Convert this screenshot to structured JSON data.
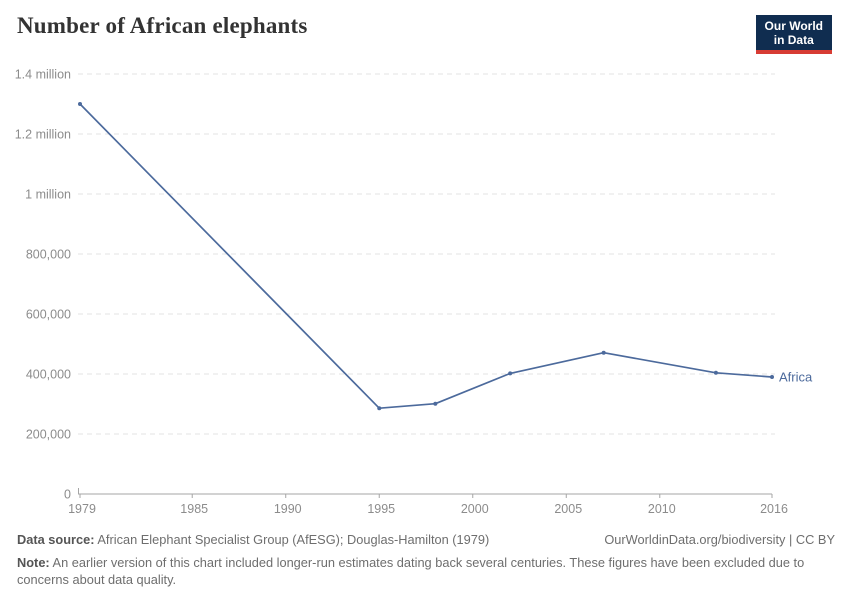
{
  "header": {
    "title": "Number of African elephants",
    "logo": {
      "line1": "Our World",
      "line2": "in Data"
    }
  },
  "chart_data": {
    "type": "line",
    "title": "Number of African elephants",
    "series": [
      {
        "name": "Africa",
        "color": "#4C6A9C",
        "points": [
          {
            "year": 1979,
            "value": 1300000
          },
          {
            "year": 1995,
            "value": 286000
          },
          {
            "year": 1998,
            "value": 301000
          },
          {
            "year": 2002,
            "value": 402000
          },
          {
            "year": 2007,
            "value": 471000
          },
          {
            "year": 2013,
            "value": 404000
          },
          {
            "year": 2016,
            "value": 390000
          }
        ]
      }
    ],
    "end_label": "Africa",
    "xlim": [
      1979,
      2016
    ],
    "ylim": [
      0,
      1400000
    ],
    "x_ticks": [
      {
        "value": 1979,
        "label": "1979"
      },
      {
        "value": 1985,
        "label": "1985"
      },
      {
        "value": 1990,
        "label": "1990"
      },
      {
        "value": 1995,
        "label": "1995"
      },
      {
        "value": 2000,
        "label": "2000"
      },
      {
        "value": 2005,
        "label": "2005"
      },
      {
        "value": 2010,
        "label": "2010"
      },
      {
        "value": 2016,
        "label": "2016"
      }
    ],
    "y_ticks": [
      {
        "value": 0,
        "label": "0"
      },
      {
        "value": 200000,
        "label": "200,000"
      },
      {
        "value": 400000,
        "label": "400,000"
      },
      {
        "value": 600000,
        "label": "600,000"
      },
      {
        "value": 800000,
        "label": "800,000"
      },
      {
        "value": 1000000,
        "label": "1 million"
      },
      {
        "value": 1200000,
        "label": "1.2 million"
      },
      {
        "value": 1400000,
        "label": "1.4 million"
      }
    ],
    "grid": "horizontal-dashed",
    "legend_position": "end-of-line-label"
  },
  "footer": {
    "datasource_label": "Data source:",
    "datasource_text": " African Elephant Specialist Group (AfESG); Douglas-Hamilton (1979)",
    "attribution": "OurWorldinData.org/biodiversity | CC BY",
    "note_label": "Note:",
    "note_text": " An earlier version of this chart included longer-run estimates dating back several centuries. These figures have been excluded due to concerns about data quality."
  },
  "colors": {
    "line": "#4C6A9C",
    "end_label": "#4C6A9C",
    "gridline": "#e3e3e3",
    "axis": "#a5a5a5",
    "tick_label": "#8c8c8c",
    "logo_background": "#102d50",
    "logo_accent": "#d73c34",
    "title_text": "#333333",
    "footer_text": "#6e6e6e"
  }
}
